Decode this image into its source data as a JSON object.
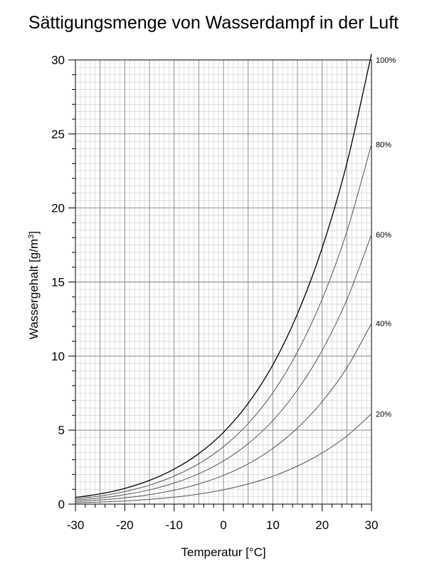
{
  "chart_data": {
    "type": "line",
    "title": "Sättigungsmenge von Wasserdampf in der Luft",
    "xlabel": "Temperatur [°C]",
    "ylabel_main": "Wassergehalt [g/m",
    "ylabel_sup": "3",
    "ylabel_close": "]",
    "xlim": [
      -30,
      30
    ],
    "ylim": [
      0,
      30
    ],
    "xticks": [
      -30,
      -20,
      -10,
      0,
      10,
      20,
      30
    ],
    "yticks": [
      0,
      5,
      10,
      15,
      20,
      25,
      30
    ],
    "grid": true,
    "x": [
      -30,
      -25,
      -20,
      -15,
      -10,
      -5,
      0,
      5,
      10,
      15,
      20,
      25,
      30
    ],
    "series": [
      {
        "name": "100%",
        "color": "#000000",
        "values": [
          0.45,
          0.69,
          1.06,
          1.6,
          2.36,
          3.41,
          4.85,
          6.8,
          9.4,
          12.85,
          17.3,
          23.0,
          30.4
        ]
      },
      {
        "name": "80%",
        "color": "#555555",
        "values": [
          0.36,
          0.55,
          0.85,
          1.28,
          1.89,
          2.73,
          3.88,
          5.44,
          7.52,
          10.28,
          13.84,
          18.4,
          24.3
        ]
      },
      {
        "name": "60%",
        "color": "#555555",
        "values": [
          0.27,
          0.41,
          0.64,
          0.96,
          1.42,
          2.05,
          2.91,
          4.08,
          5.64,
          7.71,
          10.38,
          13.8,
          18.2
        ]
      },
      {
        "name": "40%",
        "color": "#555555",
        "values": [
          0.18,
          0.28,
          0.42,
          0.64,
          0.94,
          1.36,
          1.94,
          2.72,
          3.76,
          5.14,
          6.92,
          9.2,
          12.2
        ]
      },
      {
        "name": "20%",
        "color": "#555555",
        "values": [
          0.09,
          0.14,
          0.21,
          0.32,
          0.47,
          0.68,
          0.97,
          1.36,
          1.88,
          2.57,
          3.46,
          4.6,
          6.1
        ]
      }
    ]
  }
}
